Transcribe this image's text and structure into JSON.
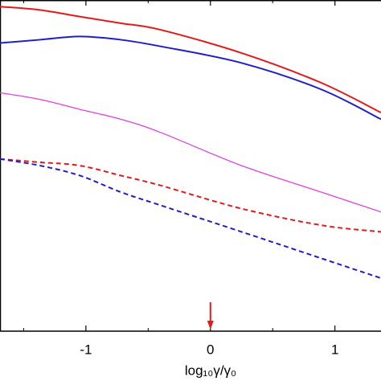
{
  "chart_data": {
    "type": "line",
    "x_label": "log₁₀γ/γ₀",
    "x": [
      -1.69,
      -1.37,
      -1.05,
      -0.72,
      -0.4,
      0.25,
      0.89,
      1.37
    ],
    "series": [
      {
        "color": "#e31a1c",
        "dash": false,
        "values": [
          0.98,
          0.97,
          0.95,
          0.93,
          0.91,
          0.84,
          0.75,
          0.66
        ]
      },
      {
        "color": "#1f1fc8",
        "dash": false,
        "values": [
          0.87,
          0.88,
          0.89,
          0.88,
          0.86,
          0.81,
          0.73,
          0.64
        ]
      },
      {
        "color": "#e040e0",
        "dash": false,
        "values": [
          0.72,
          0.7,
          0.67,
          0.64,
          0.6,
          0.5,
          0.42,
          0.36
        ]
      },
      {
        "color": "#e31a1c",
        "dash": true,
        "values": [
          0.52,
          0.51,
          0.5,
          0.47,
          0.44,
          0.37,
          0.32,
          0.3
        ]
      },
      {
        "color": "#1f1fc8",
        "dash": true,
        "values": [
          0.52,
          0.5,
          0.47,
          0.42,
          0.38,
          0.3,
          0.22,
          0.16
        ]
      }
    ],
    "xlim": [
      -1.69,
      1.37
    ],
    "ylim": [
      0,
      1
    ],
    "xticks": [
      -1,
      0,
      1
    ],
    "xticks_minor": [
      -1.5,
      -0.5,
      0.5
    ],
    "arrow_x": 0,
    "arrow_color": "#e31a1c"
  }
}
